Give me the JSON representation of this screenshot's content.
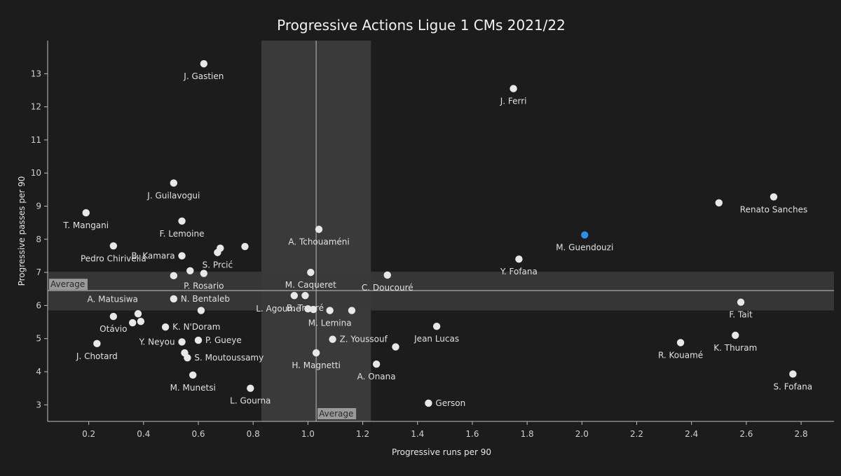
{
  "chart_data": {
    "type": "scatter",
    "title": "Progressive Actions Ligue 1 CMs 2021/22",
    "xlabel": "Progressive runs per 90",
    "ylabel": "Progressive passes per 90",
    "xlim": [
      0.05,
      2.92
    ],
    "ylim": [
      2.5,
      14.0
    ],
    "x_ticks": [
      "0.2",
      "0.4",
      "0.6",
      "0.8",
      "1.0",
      "1.2",
      "1.4",
      "1.6",
      "1.8",
      "2.0",
      "2.2",
      "2.4",
      "2.6",
      "2.8"
    ],
    "y_ticks": [
      "3",
      "4",
      "5",
      "6",
      "7",
      "8",
      "9",
      "10",
      "11",
      "12",
      "13"
    ],
    "average": {
      "x": 1.03,
      "y": 6.45,
      "label": "Average"
    },
    "x_band": [
      0.83,
      1.23
    ],
    "y_band": [
      5.85,
      7.02
    ],
    "colors": {
      "point": "#e8e8e8",
      "highlight": "#2e8fe6",
      "background": "#1c1c1c"
    },
    "points": [
      {
        "name": "J. Gastien",
        "x": 0.62,
        "y": 13.3,
        "label_pos": "below"
      },
      {
        "name": "J. Ferri",
        "x": 1.75,
        "y": 12.55,
        "label_pos": "below"
      },
      {
        "name": "J. Guilavogui",
        "x": 0.51,
        "y": 9.7,
        "label_pos": "below"
      },
      {
        "name": "Renato Sanches",
        "x": 2.7,
        "y": 9.28,
        "label_pos": "below"
      },
      {
        "name": "",
        "x": 2.5,
        "y": 9.1
      },
      {
        "name": "T. Mangani",
        "x": 0.19,
        "y": 8.8,
        "label_pos": "below"
      },
      {
        "name": "F. Lemoine",
        "x": 0.54,
        "y": 8.55,
        "label_pos": "below"
      },
      {
        "name": "A. Tchouaméni",
        "x": 1.04,
        "y": 8.3,
        "label_pos": "below"
      },
      {
        "name": "M. Guendouzi",
        "x": 2.01,
        "y": 8.13,
        "label_pos": "below",
        "highlight": true
      },
      {
        "name": "Pedro Chirivella",
        "x": 0.29,
        "y": 7.8,
        "label_pos": "below"
      },
      {
        "name": "",
        "x": 0.77,
        "y": 7.78
      },
      {
        "name": "",
        "x": 0.68,
        "y": 7.73
      },
      {
        "name": "S. Prcić",
        "x": 0.67,
        "y": 7.6,
        "label_pos": "below"
      },
      {
        "name": "B. Kamara",
        "x": 0.54,
        "y": 7.5,
        "label_pos": "left"
      },
      {
        "name": "Y. Fofana",
        "x": 1.77,
        "y": 7.4,
        "label_pos": "below"
      },
      {
        "name": "",
        "x": 0.57,
        "y": 7.05
      },
      {
        "name": "M. Caqueret",
        "x": 1.01,
        "y": 7.0,
        "label_pos": "below"
      },
      {
        "name": "P. Rosario",
        "x": 0.62,
        "y": 6.97,
        "label_pos": "below"
      },
      {
        "name": "C. Doucouré",
        "x": 1.29,
        "y": 6.92,
        "label_pos": "below"
      },
      {
        "name": "",
        "x": 0.51,
        "y": 6.9
      },
      {
        "name": "B. Traoré",
        "x": 0.99,
        "y": 6.3,
        "label_pos": "below"
      },
      {
        "name": "",
        "x": 0.95,
        "y": 6.3
      },
      {
        "name": "N. Bentaleb",
        "x": 0.51,
        "y": 6.2,
        "label_pos": "right"
      },
      {
        "name": "F. Tait",
        "x": 2.58,
        "y": 6.1,
        "label_pos": "below"
      },
      {
        "name": "L. Agoume",
        "x": 1.0,
        "y": 5.9,
        "label_pos": "left"
      },
      {
        "name": "",
        "x": 1.02,
        "y": 5.88
      },
      {
        "name": "M. Lemina",
        "x": 1.08,
        "y": 5.85,
        "label_pos": "below"
      },
      {
        "name": "",
        "x": 1.16,
        "y": 5.85
      },
      {
        "name": "A. Matusiwa",
        "x": 0.61,
        "y": 5.85,
        "label_pos": "far-left"
      },
      {
        "name": "",
        "x": 0.38,
        "y": 5.75
      },
      {
        "name": "Otávio",
        "x": 0.29,
        "y": 5.67,
        "label_pos": "below"
      },
      {
        "name": "",
        "x": 0.39,
        "y": 5.52
      },
      {
        "name": "",
        "x": 0.36,
        "y": 5.48
      },
      {
        "name": "Jean Lucas",
        "x": 1.47,
        "y": 5.37,
        "label_pos": "below"
      },
      {
        "name": "K. N'Doram",
        "x": 0.48,
        "y": 5.35,
        "label_pos": "right"
      },
      {
        "name": "K. Thuram",
        "x": 2.56,
        "y": 5.1,
        "label_pos": "below"
      },
      {
        "name": "Z. Youssouf",
        "x": 1.09,
        "y": 4.98,
        "label_pos": "right"
      },
      {
        "name": "P. Gueye",
        "x": 0.6,
        "y": 4.95,
        "label_pos": "right"
      },
      {
        "name": "Y. Neyou",
        "x": 0.54,
        "y": 4.9,
        "label_pos": "left"
      },
      {
        "name": "R. Kouamé",
        "x": 2.36,
        "y": 4.88,
        "label_pos": "below"
      },
      {
        "name": "J. Chotard",
        "x": 0.23,
        "y": 4.85,
        "label_pos": "below"
      },
      {
        "name": "",
        "x": 1.32,
        "y": 4.75
      },
      {
        "name": "H. Magnetti",
        "x": 1.03,
        "y": 4.57,
        "label_pos": "below"
      },
      {
        "name": "",
        "x": 0.55,
        "y": 4.57
      },
      {
        "name": "S. Moutoussamy",
        "x": 0.56,
        "y": 4.42,
        "label_pos": "right"
      },
      {
        "name": "A. Onana",
        "x": 1.25,
        "y": 4.23,
        "label_pos": "below"
      },
      {
        "name": "S. Fofana",
        "x": 2.77,
        "y": 3.93,
        "label_pos": "below"
      },
      {
        "name": "M. Munetsi",
        "x": 0.58,
        "y": 3.9,
        "label_pos": "below"
      },
      {
        "name": "L. Gourna",
        "x": 0.79,
        "y": 3.5,
        "label_pos": "below"
      },
      {
        "name": "Gerson",
        "x": 1.44,
        "y": 3.05,
        "label_pos": "right"
      }
    ]
  }
}
